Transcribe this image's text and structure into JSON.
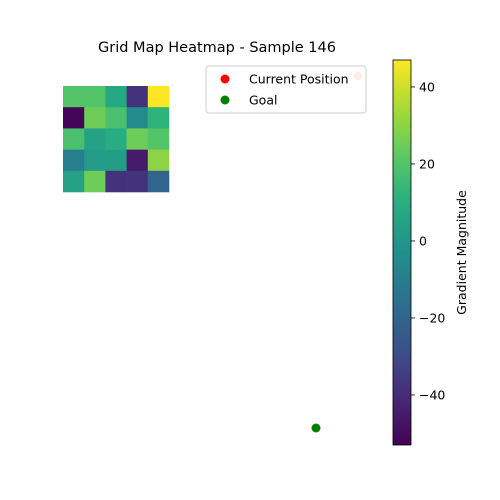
{
  "chart_data": {
    "type": "heatmap",
    "title": "Grid Map Heatmap - Sample 146",
    "grid": [
      [
        20,
        20,
        8,
        -38,
        47
      ],
      [
        -52,
        25,
        18,
        -5,
        12
      ],
      [
        18,
        5,
        10,
        25,
        20
      ],
      [
        -10,
        2,
        3,
        -45,
        30
      ],
      [
        5,
        25,
        -38,
        -38,
        -20
      ]
    ],
    "colorbar": {
      "label": "Gradient Magnitude",
      "min": -53,
      "max": 47,
      "ticks": [
        -40,
        -20,
        0,
        20,
        40
      ]
    },
    "points": [
      {
        "name": "Current Position",
        "color": "#ff0000",
        "x": 7,
        "y": 0
      },
      {
        "name": "Goal",
        "color": "#008000",
        "x": 6,
        "y": 8.5
      }
    ],
    "legend": {
      "position": "top-right",
      "entries": [
        "Current Position",
        "Goal"
      ]
    },
    "axes_visible": false
  }
}
